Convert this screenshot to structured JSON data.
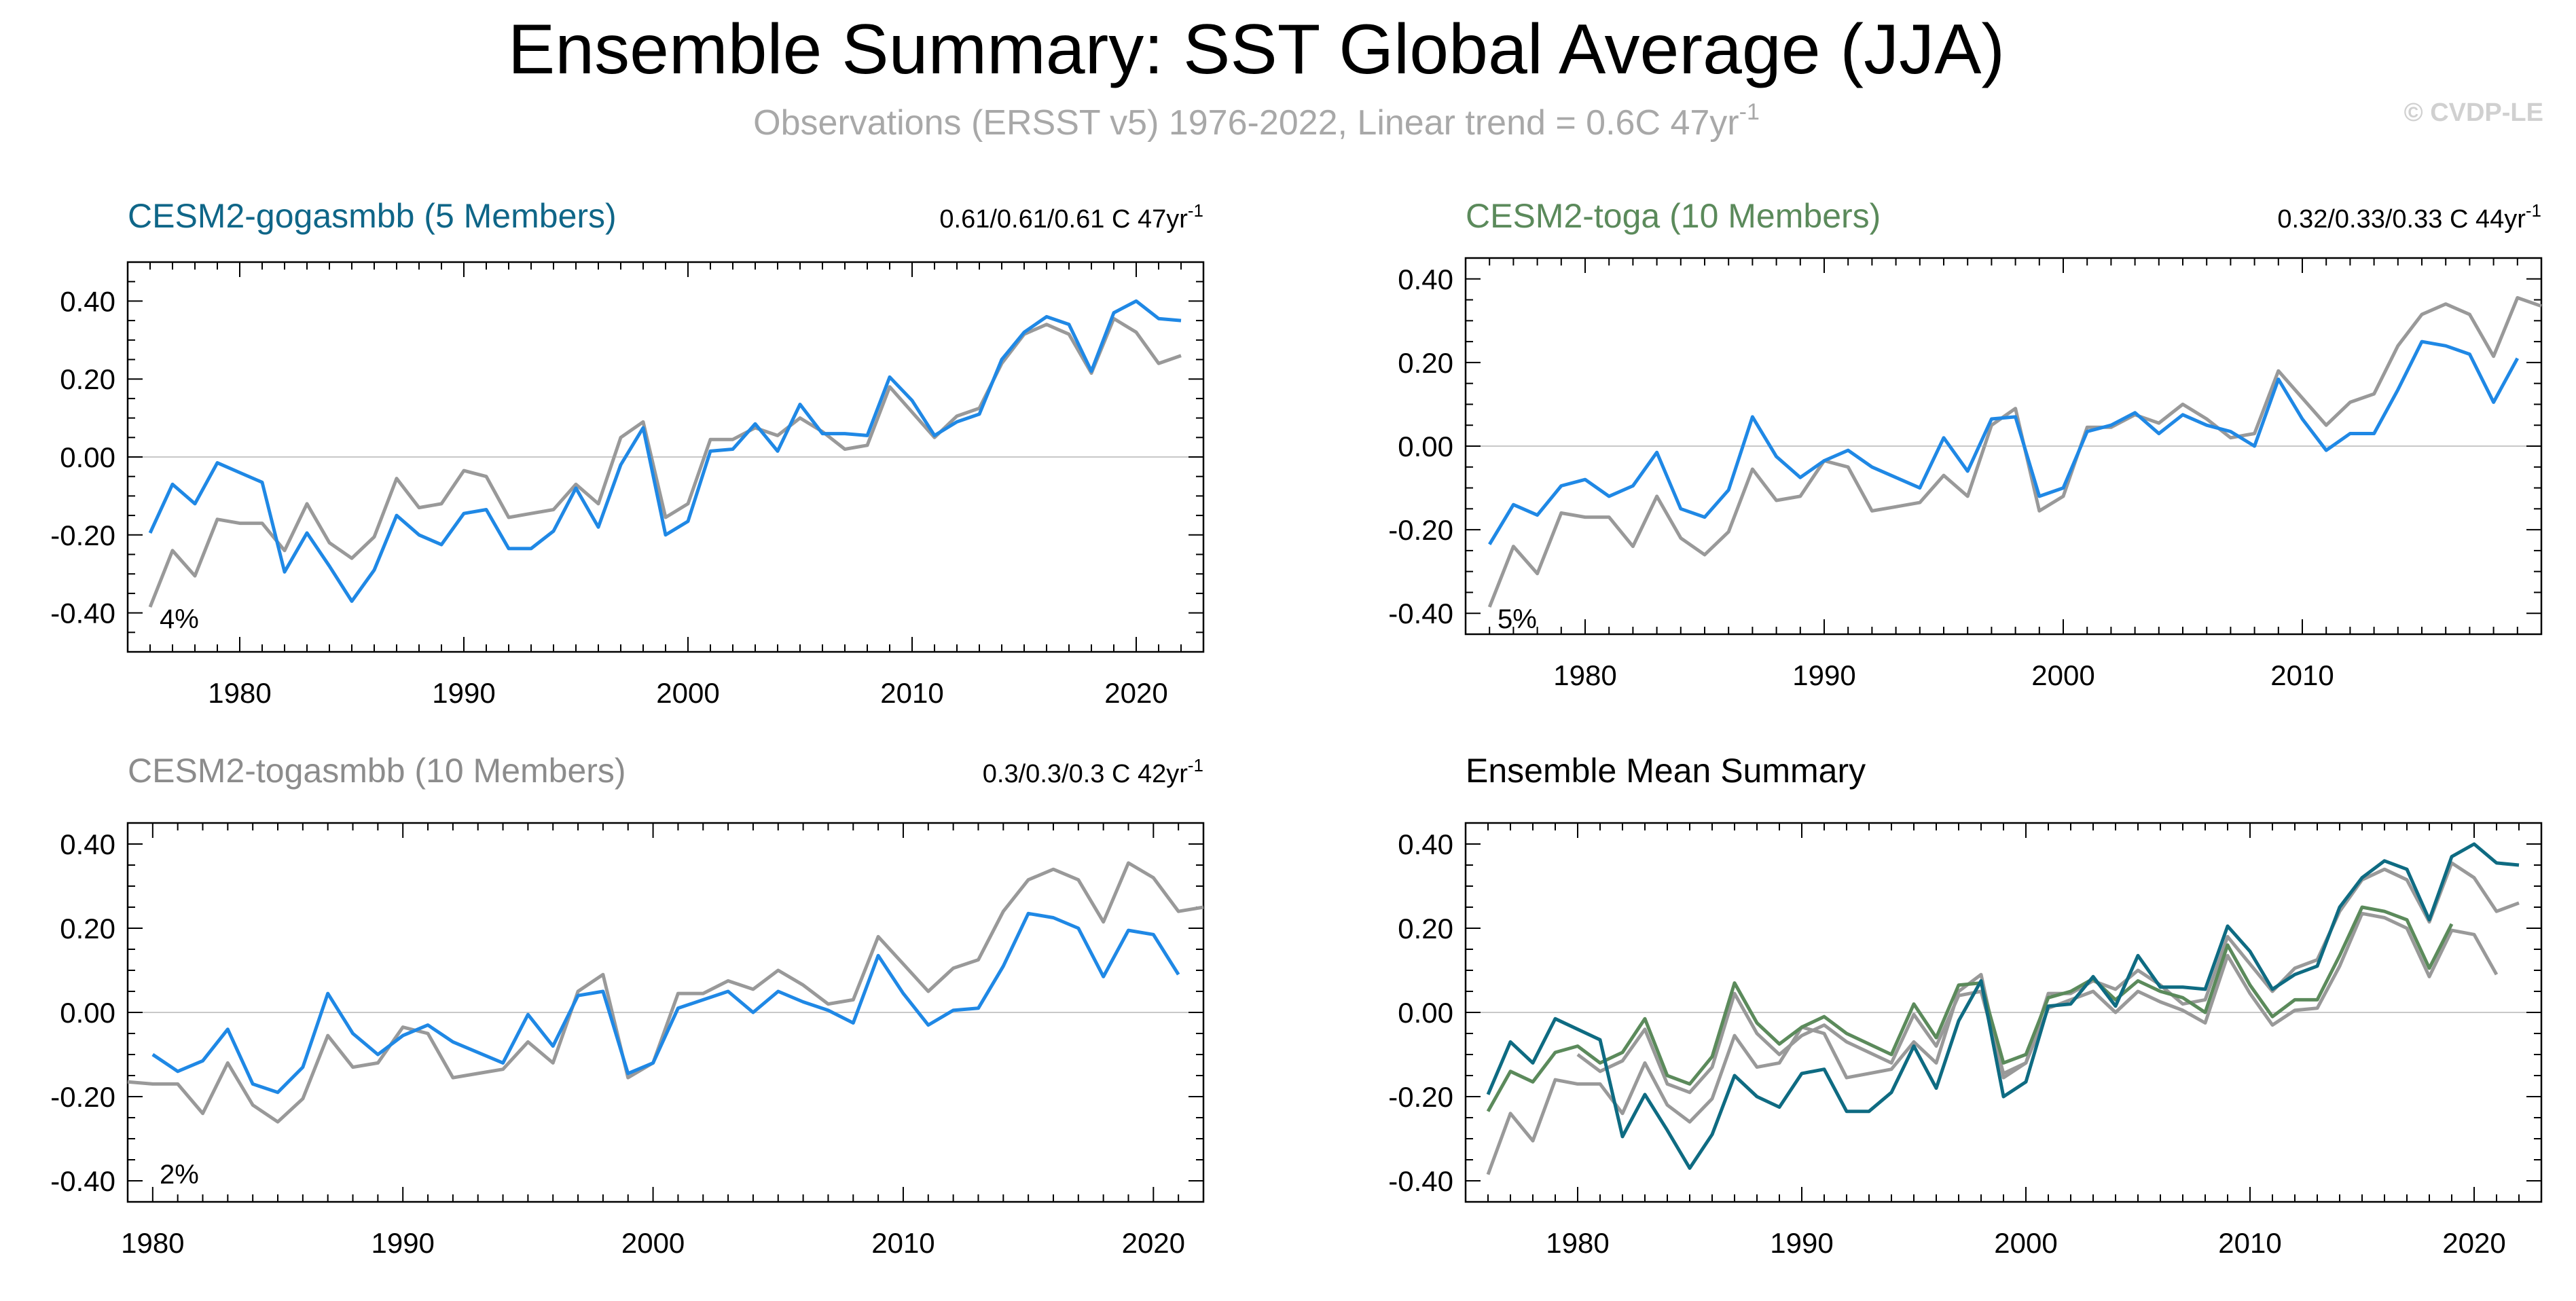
{
  "header": {
    "title": "Ensemble Summary: SST Global Average (JJA)",
    "subtitle": "Observations (ERSST v5) 1976-2022, Linear trend = 0.6C 47yr",
    "subtitle_sup": "-1",
    "watermark": "© CVDP-LE"
  },
  "colors": {
    "observations": "#999999",
    "ensemble_blue": "#1f88e5",
    "gogasmbb_title": "#0f6688",
    "toga_title": "#5b8a5b",
    "togasmbb_title": "#8c8c8c",
    "mean_gogasmbb": "#0e6b82",
    "mean_toga": "#5b8a5b",
    "zero_line": "#c8c8c8"
  },
  "chart_data": [
    {
      "type": "line",
      "title": "CESM2-gogasmbb (5 Members)",
      "trend_text": "0.61/0.61/0.61 C 47yr",
      "trend_sup": "-1",
      "pct_label": "4%",
      "xlim": [
        1975,
        2023
      ],
      "ylim": [
        -0.5,
        0.5
      ],
      "xticks": [
        1980,
        1990,
        2000,
        2010,
        2020
      ],
      "yticks": [
        -0.4,
        -0.2,
        0.0,
        0.2,
        0.4
      ],
      "ytick_labels": [
        "-0.40",
        "-0.20",
        "0.00",
        "0.20",
        "0.40"
      ],
      "series": [
        {
          "values_key": "obs",
          "x_start": 1976,
          "color_key": "observations",
          "values": [
            -0.385,
            -0.24,
            -0.305,
            -0.16,
            -0.17,
            -0.17,
            -0.24,
            -0.12,
            -0.22,
            -0.26,
            -0.205,
            -0.055,
            -0.13,
            -0.12,
            -0.035,
            -0.05,
            -0.155,
            -0.145,
            -0.135,
            -0.07,
            -0.12,
            0.05,
            0.09,
            -0.155,
            -0.12,
            0.045,
            0.045,
            0.075,
            0.055,
            0.1,
            0.065,
            0.02,
            0.03,
            0.18,
            0.115,
            0.05,
            0.105,
            0.125,
            0.24,
            0.315,
            0.34,
            0.315,
            0.215,
            0.355,
            0.32,
            0.24,
            0.26
          ]
        },
        {
          "values_key": "ens",
          "x_start": 1976,
          "color_key": "ensemble_blue",
          "values": [
            -0.195,
            -0.07,
            -0.12,
            -0.015,
            -0.04,
            -0.065,
            -0.295,
            -0.195,
            -0.28,
            -0.37,
            -0.29,
            -0.15,
            -0.2,
            -0.225,
            -0.145,
            -0.135,
            -0.235,
            -0.235,
            -0.19,
            -0.08,
            -0.18,
            -0.02,
            0.075,
            -0.2,
            -0.165,
            0.015,
            0.02,
            0.085,
            0.015,
            0.135,
            0.06,
            0.06,
            0.055,
            0.205,
            0.145,
            0.055,
            0.09,
            0.11,
            0.25,
            0.32,
            0.36,
            0.34,
            0.22,
            0.37,
            0.4,
            0.355,
            0.35
          ]
        }
      ]
    },
    {
      "type": "line",
      "title": "CESM2-toga (10 Members)",
      "trend_text": "0.32/0.33/0.33 C 44yr",
      "trend_sup": "-1",
      "pct_label": "5%",
      "xlim": [
        1975,
        2020
      ],
      "ylim": [
        -0.45,
        0.45
      ],
      "xticks": [
        1980,
        1990,
        2000,
        2010
      ],
      "yticks": [
        -0.4,
        -0.2,
        0.0,
        0.2,
        0.4
      ],
      "ytick_labels": [
        "-0.40",
        "-0.20",
        "0.00",
        "0.20",
        "0.40"
      ],
      "series": [
        {
          "values_key": "obs",
          "x_start": 1976,
          "color_key": "observations",
          "values": [
            -0.385,
            -0.24,
            -0.305,
            -0.16,
            -0.17,
            -0.17,
            -0.24,
            -0.12,
            -0.22,
            -0.26,
            -0.205,
            -0.055,
            -0.13,
            -0.12,
            -0.035,
            -0.05,
            -0.155,
            -0.145,
            -0.135,
            -0.07,
            -0.12,
            0.05,
            0.09,
            -0.155,
            -0.12,
            0.045,
            0.045,
            0.075,
            0.055,
            0.1,
            0.065,
            0.02,
            0.03,
            0.18,
            0.115,
            0.05,
            0.105,
            0.125,
            0.24,
            0.315,
            0.34,
            0.315,
            0.215,
            0.355,
            0.335
          ]
        },
        {
          "values_key": "ens",
          "x_start": 1976,
          "color_key": "ensemble_blue",
          "values": [
            -0.235,
            -0.14,
            -0.165,
            -0.095,
            -0.08,
            -0.12,
            -0.095,
            -0.015,
            -0.15,
            -0.17,
            -0.105,
            0.07,
            -0.025,
            -0.075,
            -0.035,
            -0.01,
            -0.05,
            -0.075,
            -0.1,
            0.02,
            -0.06,
            0.065,
            0.07,
            -0.12,
            -0.1,
            0.035,
            0.05,
            0.08,
            0.03,
            0.075,
            0.05,
            0.035,
            0.0,
            0.16,
            0.065,
            -0.01,
            0.03,
            0.03,
            0.135,
            0.25,
            0.24,
            0.22,
            0.105,
            0.21
          ]
        }
      ]
    },
    {
      "type": "line",
      "title": "CESM2-togasmbb (10 Members)",
      "trend_text": "0.3/0.3/0.3 C 42yr",
      "trend_sup": "-1",
      "pct_label": "2%",
      "xlim": [
        1979,
        2022
      ],
      "ylim": [
        -0.45,
        0.45
      ],
      "xticks": [
        1980,
        1990,
        2000,
        2010,
        2020
      ],
      "yticks": [
        -0.4,
        -0.2,
        0.0,
        0.2,
        0.4
      ],
      "ytick_labels": [
        "-0.40",
        "-0.20",
        "0.00",
        "0.20",
        "0.40"
      ],
      "series": [
        {
          "values_key": "obs",
          "x_start": 1979,
          "color_key": "observations",
          "values": [
            -0.165,
            -0.17,
            -0.17,
            -0.24,
            -0.12,
            -0.22,
            -0.26,
            -0.205,
            -0.055,
            -0.13,
            -0.12,
            -0.035,
            -0.05,
            -0.155,
            -0.145,
            -0.135,
            -0.07,
            -0.12,
            0.05,
            0.09,
            -0.155,
            -0.12,
            0.045,
            0.045,
            0.075,
            0.055,
            0.1,
            0.065,
            0.02,
            0.03,
            0.18,
            0.115,
            0.05,
            0.105,
            0.125,
            0.24,
            0.315,
            0.34,
            0.315,
            0.215,
            0.355,
            0.32,
            0.24,
            0.25
          ]
        },
        {
          "values_key": "ens",
          "x_start": 1980,
          "color_key": "ensemble_blue",
          "values": [
            -0.1,
            -0.14,
            -0.115,
            -0.04,
            -0.17,
            -0.19,
            -0.13,
            0.045,
            -0.05,
            -0.1,
            -0.055,
            -0.03,
            -0.07,
            -0.095,
            -0.12,
            -0.005,
            -0.08,
            0.04,
            0.05,
            -0.145,
            -0.12,
            0.01,
            0.03,
            0.05,
            0.0,
            0.05,
            0.025,
            0.005,
            -0.025,
            0.135,
            0.045,
            -0.03,
            0.005,
            0.01,
            0.11,
            0.235,
            0.225,
            0.2,
            0.085,
            0.195,
            0.185,
            0.09
          ]
        }
      ]
    },
    {
      "type": "line",
      "title": "Ensemble Mean Summary",
      "xlim": [
        1975,
        2023
      ],
      "ylim": [
        -0.45,
        0.45
      ],
      "xticks": [
        1980,
        1990,
        2000,
        2010,
        2020
      ],
      "yticks": [
        -0.4,
        -0.2,
        0.0,
        0.2,
        0.4
      ],
      "ytick_labels": [
        "-0.40",
        "-0.20",
        "0.00",
        "0.20",
        "0.40"
      ],
      "series": [
        {
          "values_key": "obs",
          "x_start": 1976,
          "color_key": "observations",
          "values": [
            -0.385,
            -0.24,
            -0.305,
            -0.16,
            -0.17,
            -0.17,
            -0.24,
            -0.12,
            -0.22,
            -0.26,
            -0.205,
            -0.055,
            -0.13,
            -0.12,
            -0.035,
            -0.05,
            -0.155,
            -0.145,
            -0.135,
            -0.07,
            -0.12,
            0.05,
            0.09,
            -0.155,
            -0.12,
            0.045,
            0.045,
            0.075,
            0.055,
            0.1,
            0.065,
            0.02,
            0.03,
            0.18,
            0.115,
            0.05,
            0.105,
            0.125,
            0.24,
            0.315,
            0.34,
            0.315,
            0.215,
            0.355,
            0.32,
            0.24,
            0.26
          ]
        },
        {
          "values_key": "togasmbb",
          "x_start": 1980,
          "color_key": "observations",
          "values": [
            -0.1,
            -0.14,
            -0.115,
            -0.04,
            -0.17,
            -0.19,
            -0.13,
            0.045,
            -0.05,
            -0.1,
            -0.055,
            -0.03,
            -0.07,
            -0.095,
            -0.12,
            -0.005,
            -0.08,
            0.04,
            0.05,
            -0.145,
            -0.12,
            0.01,
            0.03,
            0.05,
            0.0,
            0.05,
            0.025,
            0.005,
            -0.025,
            0.135,
            0.045,
            -0.03,
            0.005,
            0.01,
            0.11,
            0.235,
            0.225,
            0.2,
            0.085,
            0.195,
            0.185,
            0.09
          ]
        },
        {
          "values_key": "toga",
          "x_start": 1976,
          "color_key": "mean_toga",
          "values": [
            -0.235,
            -0.14,
            -0.165,
            -0.095,
            -0.08,
            -0.12,
            -0.095,
            -0.015,
            -0.15,
            -0.17,
            -0.105,
            0.07,
            -0.025,
            -0.075,
            -0.035,
            -0.01,
            -0.05,
            -0.075,
            -0.1,
            0.02,
            -0.06,
            0.065,
            0.07,
            -0.12,
            -0.1,
            0.035,
            0.05,
            0.08,
            0.03,
            0.075,
            0.05,
            0.035,
            0.0,
            0.16,
            0.065,
            -0.01,
            0.03,
            0.03,
            0.135,
            0.25,
            0.24,
            0.22,
            0.105,
            0.21
          ]
        },
        {
          "values_key": "gogasmbb",
          "x_start": 1976,
          "color_key": "mean_gogasmbb",
          "values": [
            -0.195,
            -0.07,
            -0.12,
            -0.015,
            -0.04,
            -0.065,
            -0.295,
            -0.195,
            -0.28,
            -0.37,
            -0.29,
            -0.15,
            -0.2,
            -0.225,
            -0.145,
            -0.135,
            -0.235,
            -0.235,
            -0.19,
            -0.08,
            -0.18,
            -0.02,
            0.075,
            -0.2,
            -0.165,
            0.015,
            0.02,
            0.085,
            0.015,
            0.135,
            0.06,
            0.06,
            0.055,
            0.205,
            0.145,
            0.055,
            0.09,
            0.11,
            0.25,
            0.32,
            0.36,
            0.34,
            0.22,
            0.37,
            0.4,
            0.355,
            0.35
          ]
        }
      ]
    }
  ]
}
